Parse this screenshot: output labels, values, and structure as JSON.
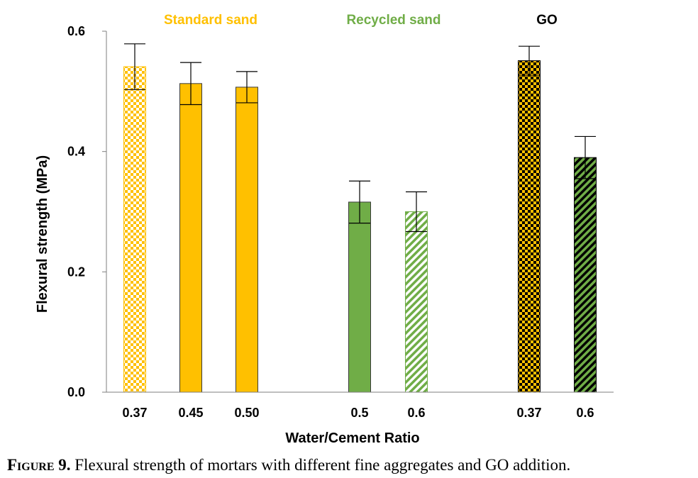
{
  "caption": {
    "figure_number": "Figure 9.",
    "text": "Flexural strength of mortars with different fine aggregates and GO addition."
  },
  "colors": {
    "standard_sand": "#FFC000",
    "recycled_sand": "#70AD47",
    "go": "#000000",
    "go_label": "#000000"
  },
  "chart_data": {
    "type": "bar",
    "title": "",
    "xlabel": "Water/Cement Ratio",
    "ylabel": "Flexural strength (MPa)",
    "ylim": [
      0,
      0.6
    ],
    "yticks": [
      "0.0",
      "0.2",
      "0.4",
      "0.6"
    ],
    "grid": false,
    "groups": [
      {
        "name": "Standard sand",
        "color": "#FFC000",
        "bars": [
          {
            "category": "0.37",
            "value": 0.541,
            "error": 0.038,
            "pattern": "checker-light"
          },
          {
            "category": "0.45",
            "value": 0.513,
            "error": 0.035,
            "pattern": "solid"
          },
          {
            "category": "0.50",
            "value": 0.507,
            "error": 0.026,
            "pattern": "solid"
          }
        ]
      },
      {
        "name": "Recycled sand",
        "color": "#70AD47",
        "bars": [
          {
            "category": "0.5",
            "value": 0.316,
            "error": 0.035,
            "pattern": "solid"
          },
          {
            "category": "0.6",
            "value": 0.3,
            "error": 0.033,
            "pattern": "diagonal-light"
          }
        ]
      },
      {
        "name": "GO",
        "color": "#000000",
        "bars": [
          {
            "category": "0.37",
            "value": 0.551,
            "error": 0.024,
            "pattern": "checker-dark-yellow"
          },
          {
            "category": "0.6",
            "value": 0.39,
            "error": 0.035,
            "pattern": "diagonal-dark-green"
          }
        ]
      }
    ]
  }
}
